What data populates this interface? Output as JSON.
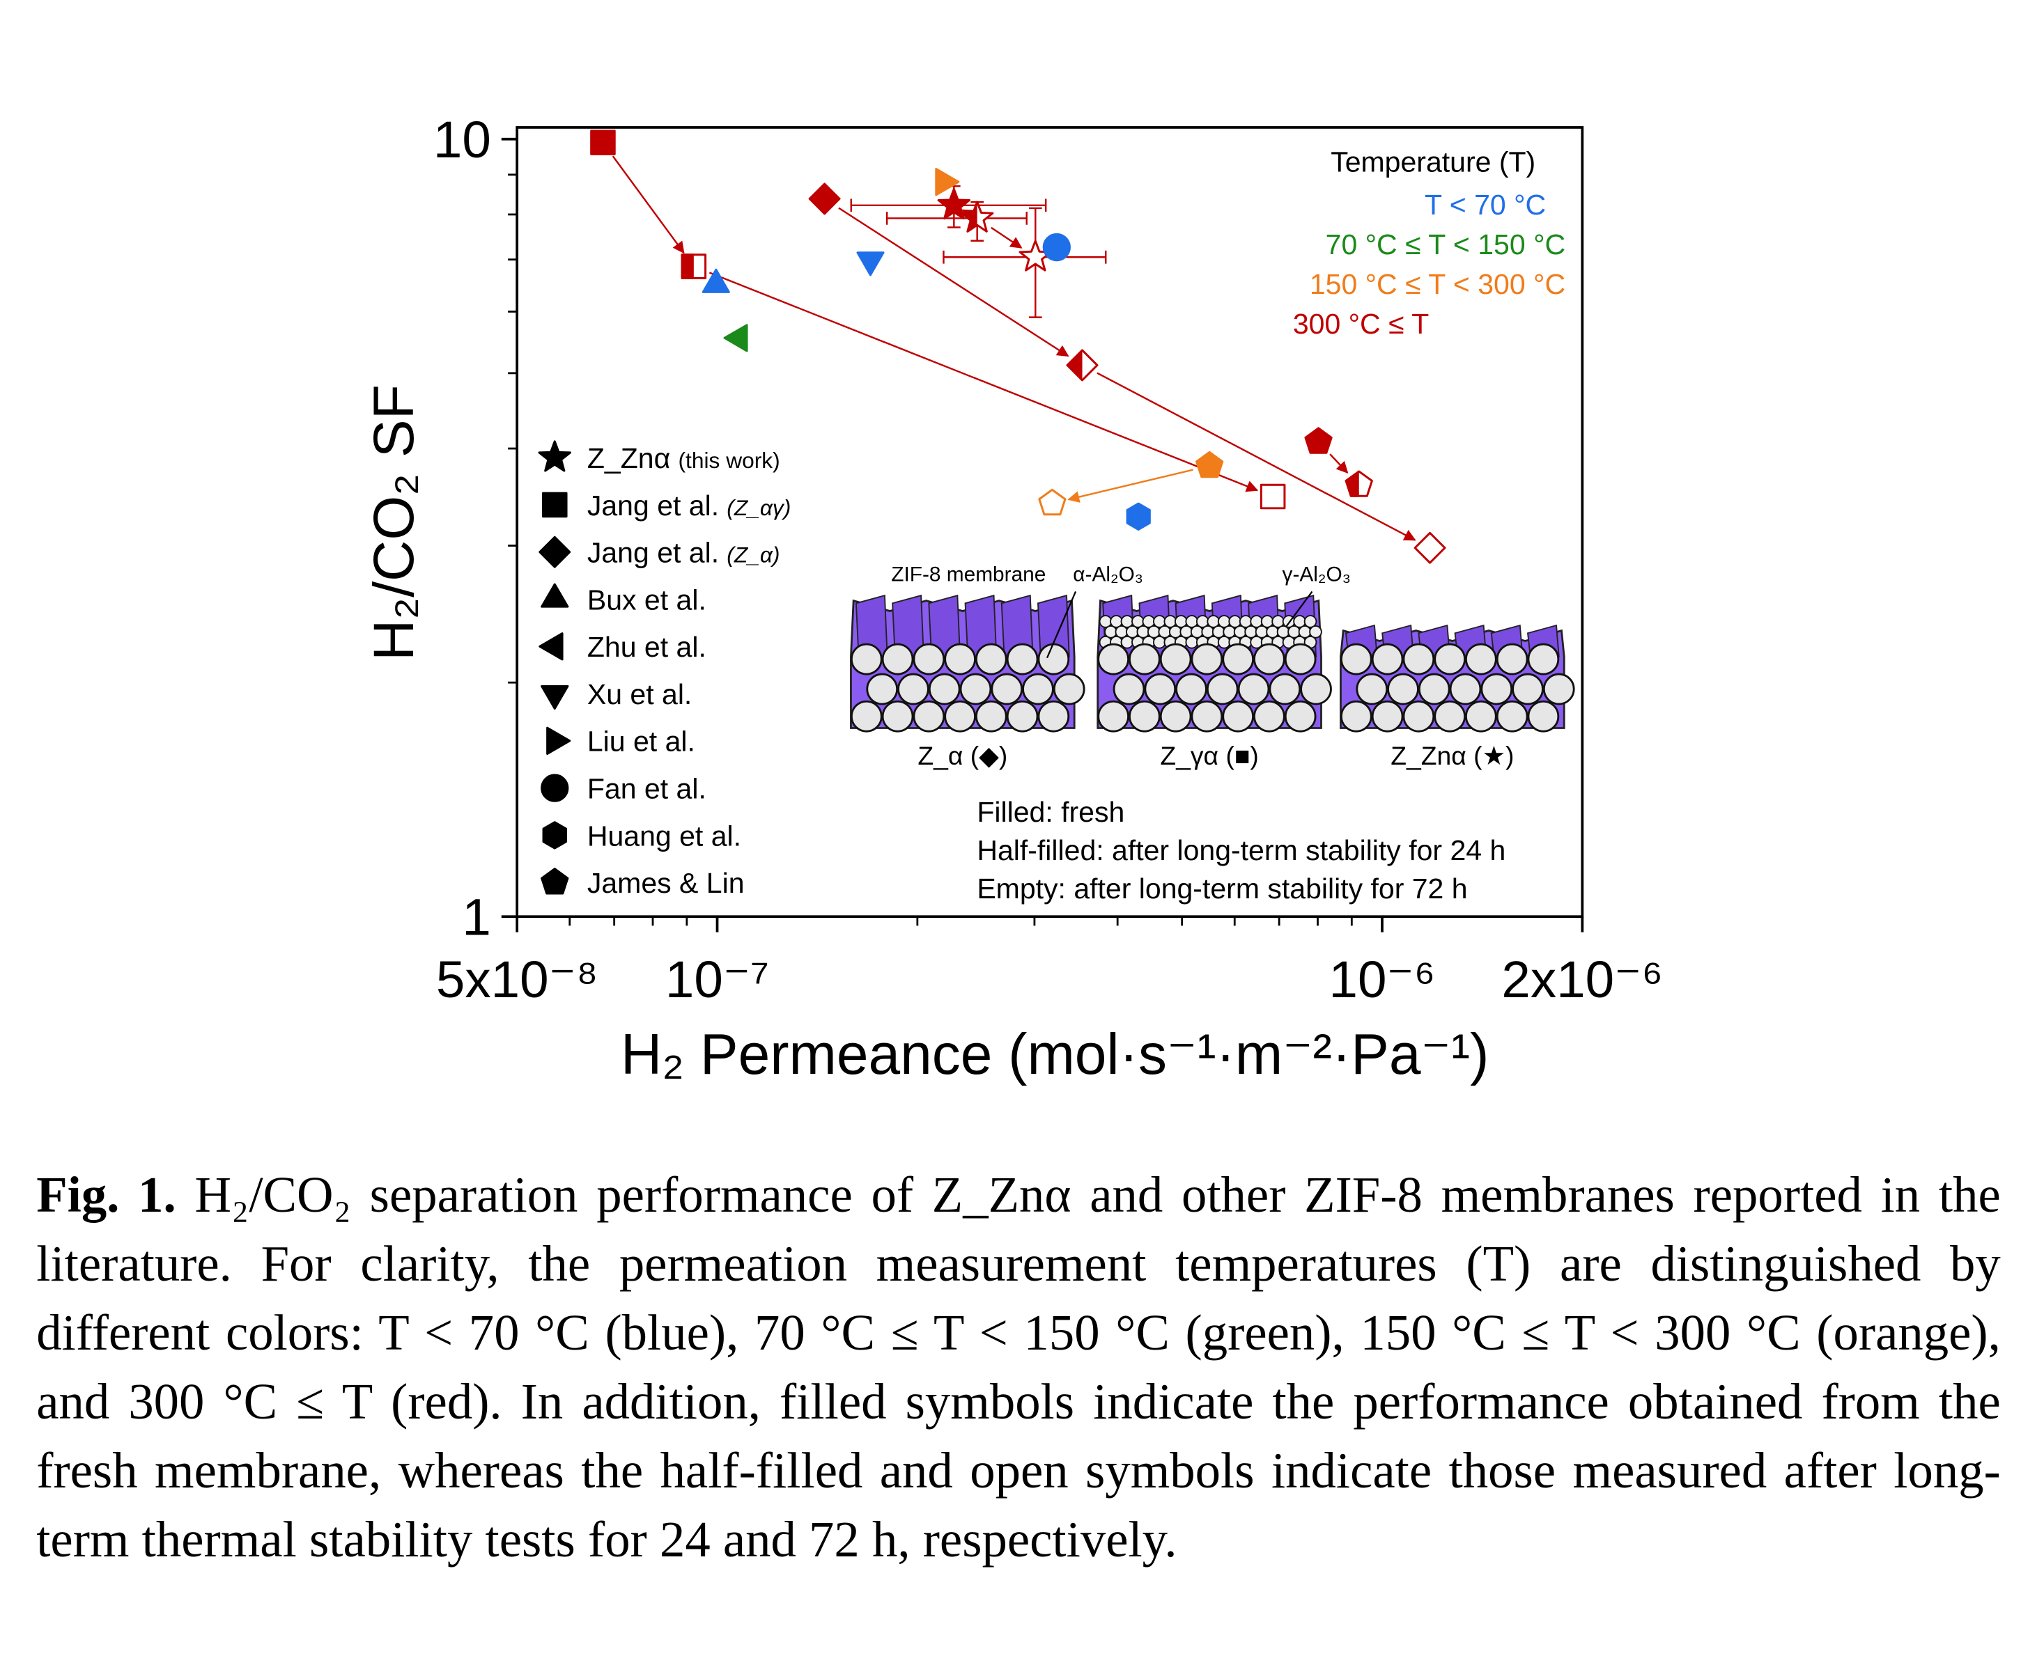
{
  "chart_data": {
    "type": "scatter",
    "xlog": true,
    "ylog": true,
    "xlabel": "H₂ Permeance (mol·s⁻¹·m⁻²·Pa⁻¹)",
    "ylabel": "H₂/CO₂ SF",
    "xlim": [
      5e-08,
      2e-06
    ],
    "ylim": [
      1,
      10
    ],
    "xticks": [
      {
        "value": 5e-08,
        "label": "5x10⁻⁸"
      },
      {
        "value": 1e-07,
        "label": "10⁻⁷"
      },
      {
        "value": 1e-06,
        "label": "10⁻⁶"
      },
      {
        "value": 2e-06,
        "label": "2x10⁻⁶"
      }
    ],
    "yticks": [
      1,
      10
    ],
    "x_minor_ticks": [
      6e-08,
      7e-08,
      8e-08,
      9e-08,
      2e-07,
      3e-07,
      4e-07,
      5e-07,
      6e-07,
      7e-07,
      8e-07,
      9e-07
    ],
    "y_minor_ticks": [
      2,
      3,
      4,
      5,
      6,
      7,
      8,
      9
    ],
    "series": [
      {
        "name": "Z_Znα",
        "note": "(this work)",
        "marker": "star",
        "x": [
          2.27e-07,
          2.46e-07,
          3.01e-07
        ],
        "values": [
          8.22,
          7.91,
          7.05
        ],
        "colors": [
          "#c00000",
          "#c00000",
          "#c00000"
        ],
        "fill": [
          "filled",
          "half",
          "empty"
        ],
        "x_range": [
          [
            1.59e-07,
            3.12e-07
          ],
          [
            1.8e-07,
            2.92e-07
          ],
          [
            2.19e-07,
            3.84e-07
          ]
        ],
        "y_range": [
          [
            7.7,
            8.7
          ],
          [
            7.4,
            8.3
          ],
          [
            5.9,
            8.15
          ]
        ]
      },
      {
        "name": "Jang et al.",
        "note": "(Z_αγ)",
        "marker": "square",
        "x": [
          6.73e-08,
          9.22e-08,
          6.85e-07
        ],
        "values": [
          9.9,
          6.86,
          3.47
        ],
        "colors": [
          "#c00000",
          "#c00000",
          "#c00000"
        ],
        "fill": [
          "filled",
          "half",
          "empty"
        ]
      },
      {
        "name": "Jang et al.",
        "note": "(Z_α)",
        "marker": "diamond",
        "x": [
          1.45e-07,
          3.54e-07,
          1.18e-06
        ],
        "values": [
          8.38,
          5.12,
          2.98
        ],
        "colors": [
          "#c00000",
          "#c00000",
          "#c00000"
        ],
        "fill": [
          "filled",
          "half",
          "empty"
        ]
      },
      {
        "name": "Bux et al.",
        "marker": "triangle-up",
        "x": [
          9.96e-08
        ],
        "values": [
          6.5
        ],
        "colors": [
          "#1f6fe8"
        ],
        "fill": [
          "filled"
        ]
      },
      {
        "name": "Zhu et al.",
        "marker": "triangle-left",
        "x": [
          1.08e-07
        ],
        "values": [
          5.55
        ],
        "colors": [
          "#1a8a1a"
        ],
        "fill": [
          "filled"
        ]
      },
      {
        "name": "Xu et al.",
        "marker": "triangle-down",
        "x": [
          1.7e-07
        ],
        "values": [
          6.99
        ],
        "colors": [
          "#1f6fe8"
        ],
        "fill": [
          "filled"
        ]
      },
      {
        "name": "Liu et al.",
        "marker": "triangle-right",
        "x": [
          2.19e-07
        ],
        "values": [
          8.81
        ],
        "colors": [
          "#f07c1a"
        ],
        "fill": [
          "filled"
        ]
      },
      {
        "name": "Fan et al.",
        "marker": "circle",
        "x": [
          3.24e-07
        ],
        "values": [
          7.26
        ],
        "colors": [
          "#1f6fe8"
        ],
        "fill": [
          "filled"
        ]
      },
      {
        "name": "Huang et al.",
        "marker": "hexagon",
        "x": [
          4.3e-07
        ],
        "values": [
          3.27
        ],
        "colors": [
          "#1f6fe8"
        ],
        "fill": [
          "filled"
        ]
      },
      {
        "name": "James & Lin",
        "marker": "pentagon",
        "x": [
          8.02e-07,
          9.23e-07,
          5.5e-07,
          3.19e-07
        ],
        "values": [
          4.08,
          3.59,
          3.8,
          3.4
        ],
        "colors": [
          "#c00000",
          "#c00000",
          "#f07c1a",
          "#f07c1a"
        ],
        "fill": [
          "filled",
          "half",
          "filled",
          "empty"
        ]
      }
    ],
    "color_legend": {
      "title": "Temperature (T)",
      "items": [
        {
          "label": "T < 70 °C",
          "color": "#1f6fe8"
        },
        {
          "label": "70 °C ≤ T < 150 °C",
          "color": "#1a8a1a"
        },
        {
          "label": "150 °C ≤ T < 300 °C",
          "color": "#f07c1a"
        },
        {
          "label": "300 °C ≤ T",
          "color": "#c00000"
        }
      ]
    },
    "annotations": [
      "Filled: fresh",
      "Half-filled: after long-term stability for 24 h",
      "Empty: after long-term stability for 72 h"
    ],
    "inset": {
      "labels": [
        "ZIF-8 membrane",
        "α-Al₂O₃",
        "γ-Al₂O₃"
      ],
      "panels": [
        "Z_α (◆)",
        "Z_γα (■)",
        "Z_Znα (★)"
      ]
    }
  },
  "caption": {
    "label": "Fig. 1.",
    "text": "H₂/CO₂ separation performance of Z_Znα and other ZIF-8 membranes reported in the literature. For clarity, the permeation measurement temperatures (T) are distinguished by different colors: T < 70 °C (blue), 70 °C ≤ T < 150 °C (green), 150 °C ≤ T < 300 °C (orange), and 300 °C ≤ T (red). In addition, filled symbols indicate the performance obtained from the fresh membrane, whereas the half-filled and open symbols indicate those measured after long-term thermal stability tests for 24 and 72 h, respectively."
  }
}
